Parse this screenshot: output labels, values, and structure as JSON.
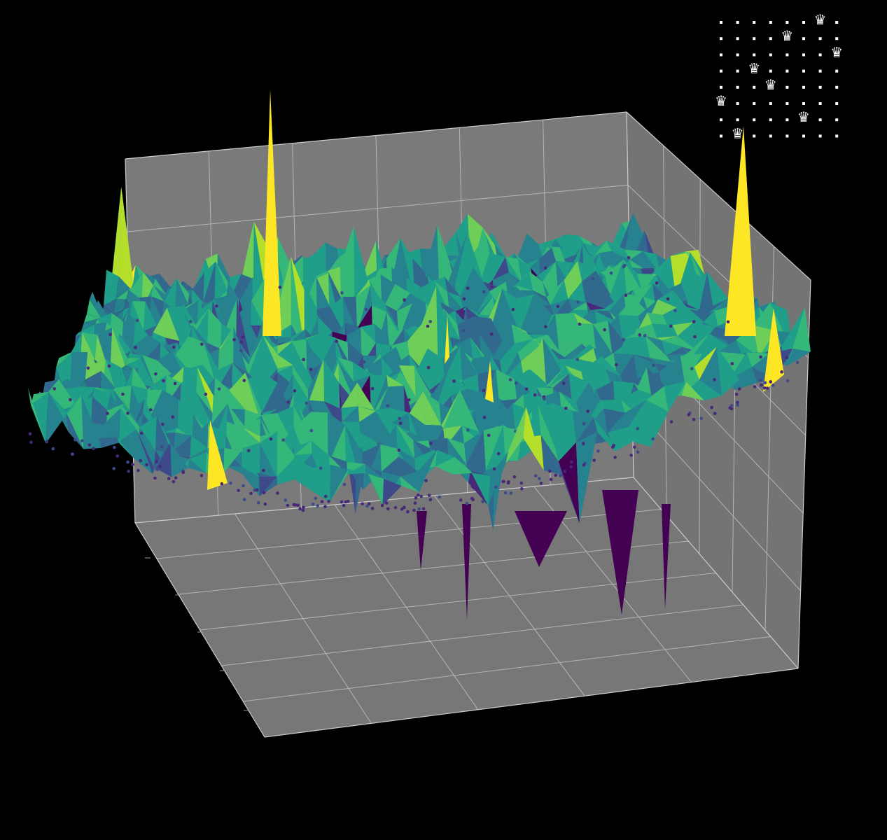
{
  "queens_board": {
    "size": 8,
    "queens": [
      6,
      4,
      7,
      2,
      3,
      0,
      5,
      1
    ],
    "symbol": "♛"
  }
}
